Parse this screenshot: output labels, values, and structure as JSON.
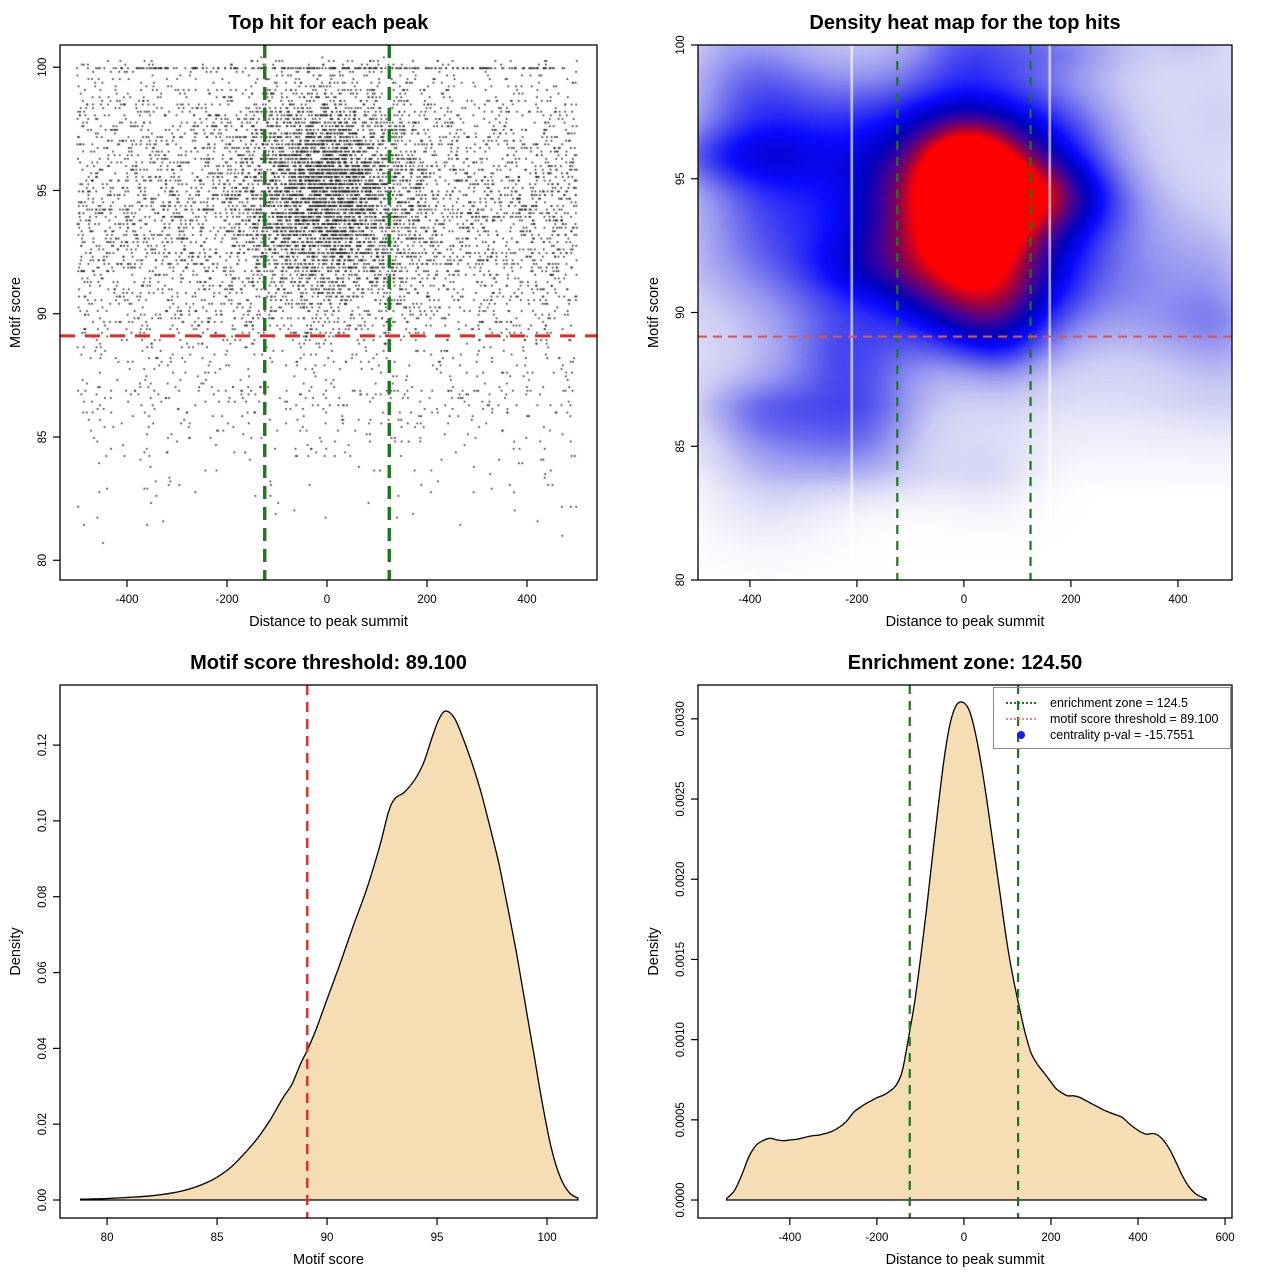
{
  "colors": {
    "green_line": "#1a7a1a",
    "red_line_bold": "#e32929",
    "red_line_soft": "#d95454",
    "legend_red": "#f28080",
    "legend_blue": "#1a1aff",
    "density_fill": "#f5deb3",
    "curve_stroke": "#000000",
    "scatter_dot": "#1a1a1a",
    "heat_ramp": [
      "#ffffff",
      "#ebebfa",
      "#ccccf4",
      "#9696f0",
      "#5050ee",
      "#0a0aff",
      "#0000be",
      "#460096",
      "#960046",
      "#ff0000"
    ]
  },
  "chart_data": [
    {
      "id": "scatter",
      "type": "scatter",
      "title": "Top hit for each peak",
      "xlabel": "Distance to peak summit",
      "ylabel": "Motif score",
      "xticks": [
        -400,
        -200,
        0,
        200,
        400
      ],
      "yticks": [
        80,
        85,
        90,
        95,
        100
      ],
      "xlim": [
        -534,
        540
      ],
      "ylim": [
        79.2,
        100.9
      ],
      "threshold_line": {
        "y": 89.1,
        "color_key": "red_line_bold"
      },
      "zone_lines": {
        "x": [
          -124.5,
          124.5
        ],
        "color_key": "green_line"
      },
      "points_model": {
        "seed": 42,
        "n_cluster": 3200,
        "cluster_x_mean": 0,
        "cluster_x_sd": 88,
        "cluster_y_mean": 95.0,
        "cluster_y_sd": 2.3,
        "n_background": 5200,
        "background_x_range": [
          -500,
          500
        ],
        "background_y_mean": 94.0,
        "background_y_sd": 3.4,
        "low_tail_fraction": 0.055,
        "y_cap": 100,
        "y_floor": 79.9,
        "y_quantum": 0.147
      }
    },
    {
      "id": "heatmap",
      "type": "heatmap",
      "title": "Density heat map for the top hits",
      "xlabel": "Distance to peak summit",
      "ylabel": "Motif score",
      "xticks": [
        -400,
        -200,
        0,
        200,
        400
      ],
      "yticks": [
        80,
        85,
        90,
        95,
        100
      ],
      "xlim": [
        -497,
        501
      ],
      "ylim": [
        80,
        100
      ],
      "threshold_line": {
        "y": 89.1,
        "color_key": "red_line_soft"
      },
      "zone_lines": {
        "x": [
          -124.5,
          124.5
        ],
        "color_key": "green_line"
      },
      "density_model": {
        "seed": 1234,
        "hotspot": {
          "x": 5,
          "y": 95.45,
          "amp": 0.36
        },
        "core": {
          "x": 0,
          "y": 94.5,
          "amp": 0.6
        },
        "lower_lobe": {
          "x": 3,
          "y": 92.8,
          "amp": 0.3
        },
        "background_wash": 0.14,
        "n_lumps": 46,
        "white_strips_x": [
          -210,
          160
        ]
      }
    },
    {
      "id": "score_density",
      "type": "area",
      "title": "Motif score threshold: 89.100",
      "xlabel": "Motif score",
      "ylabel": "Density",
      "xticks": [
        80,
        85,
        90,
        95,
        100
      ],
      "yticks": [
        "0.00",
        "0.02",
        "0.04",
        "0.06",
        "0.08",
        "0.10",
        "0.12"
      ],
      "xlim": [
        77.86,
        102.27
      ],
      "ylim": [
        -0.00475,
        0.13585
      ],
      "threshold_line": {
        "x": 89.1,
        "color_key": "red_line_bold"
      },
      "curve": [
        [
          78.8,
          0.0002
        ],
        [
          80,
          0.0004
        ],
        [
          81,
          0.0007
        ],
        [
          82,
          0.0011
        ],
        [
          83,
          0.0019
        ],
        [
          83.8,
          0.003
        ],
        [
          84.5,
          0.0045
        ],
        [
          85,
          0.006
        ],
        [
          85.6,
          0.0085
        ],
        [
          86.2,
          0.012
        ],
        [
          86.8,
          0.016
        ],
        [
          87.4,
          0.021
        ],
        [
          88,
          0.027
        ],
        [
          88.4,
          0.0305
        ],
        [
          88.8,
          0.036
        ],
        [
          89.1,
          0.0395
        ],
        [
          89.5,
          0.045
        ],
        [
          90,
          0.053
        ],
        [
          90.6,
          0.0625
        ],
        [
          91.2,
          0.0725
        ],
        [
          91.8,
          0.082
        ],
        [
          92.4,
          0.0935
        ],
        [
          92.8,
          0.1025
        ],
        [
          93.1,
          0.106
        ],
        [
          93.5,
          0.1075
        ],
        [
          94,
          0.111
        ],
        [
          94.4,
          0.1155
        ],
        [
          94.8,
          0.1225
        ],
        [
          95.1,
          0.127
        ],
        [
          95.4,
          0.129
        ],
        [
          95.8,
          0.127
        ],
        [
          96.2,
          0.1215
        ],
        [
          96.6,
          0.115
        ],
        [
          97,
          0.1075
        ],
        [
          97.4,
          0.0985
        ],
        [
          97.8,
          0.089
        ],
        [
          98.2,
          0.0775
        ],
        [
          98.6,
          0.0655
        ],
        [
          99,
          0.052
        ],
        [
          99.4,
          0.0385
        ],
        [
          99.8,
          0.025
        ],
        [
          100.2,
          0.0135
        ],
        [
          100.6,
          0.006
        ],
        [
          101,
          0.002
        ],
        [
          101.4,
          0.0005
        ]
      ]
    },
    {
      "id": "distance_density",
      "type": "area",
      "title": "Enrichment zone: 124.50",
      "xlabel": "Distance to peak summit",
      "ylabel": "Density",
      "xticks": [
        -400,
        -200,
        0,
        200,
        400,
        600
      ],
      "yticks": [
        "0.0000",
        "0.0005",
        "0.0010",
        "0.0015",
        "0.0020",
        "0.0025",
        "0.0030"
      ],
      "xlim": [
        -611,
        616
      ],
      "ylim": [
        -0.000112,
        0.003211
      ],
      "zone_lines": {
        "x": [
          -124.5,
          124.5
        ],
        "color_key": "green_line"
      },
      "legend": {
        "items": [
          {
            "label": "enrichment zone = 124.5",
            "symbol": "dotted-line",
            "color_key": "green_line"
          },
          {
            "label": "motif score threshold = 89.100",
            "symbol": "dotted-line",
            "color_key": "legend_red"
          },
          {
            "label": "centrality p-val = -15.7551",
            "symbol": "dot",
            "color_key": "legend_blue"
          }
        ]
      },
      "curve": [
        [
          -545,
          1e-05
        ],
        [
          -527,
          6e-05
        ],
        [
          -510,
          0.00016
        ],
        [
          -494,
          0.00027
        ],
        [
          -478,
          0.00034
        ],
        [
          -462,
          0.00037
        ],
        [
          -446,
          0.000385
        ],
        [
          -430,
          0.000375
        ],
        [
          -414,
          0.00037
        ],
        [
          -398,
          0.000375
        ],
        [
          -382,
          0.00038
        ],
        [
          -366,
          0.00039
        ],
        [
          -350,
          0.0004
        ],
        [
          -334,
          0.000405
        ],
        [
          -318,
          0.000415
        ],
        [
          -302,
          0.00043
        ],
        [
          -286,
          0.000455
        ],
        [
          -270,
          0.00049
        ],
        [
          -254,
          0.000545
        ],
        [
          -240,
          0.000575
        ],
        [
          -226,
          0.0006
        ],
        [
          -212,
          0.00062
        ],
        [
          -198,
          0.00064
        ],
        [
          -184,
          0.000655
        ],
        [
          -170,
          0.00068
        ],
        [
          -156,
          0.000715
        ],
        [
          -142,
          0.0008
        ],
        [
          -128,
          0.001
        ],
        [
          -114,
          0.00122
        ],
        [
          -100,
          0.0015
        ],
        [
          -86,
          0.00181
        ],
        [
          -72,
          0.00215
        ],
        [
          -58,
          0.00248
        ],
        [
          -44,
          0.00278
        ],
        [
          -30,
          0.00299
        ],
        [
          -16,
          0.00309
        ],
        [
          0,
          0.0031
        ],
        [
          14,
          0.00304
        ],
        [
          28,
          0.00289
        ],
        [
          42,
          0.00268
        ],
        [
          56,
          0.00243
        ],
        [
          70,
          0.00216
        ],
        [
          84,
          0.00189
        ],
        [
          98,
          0.00162
        ],
        [
          112,
          0.0014
        ],
        [
          126,
          0.00122
        ],
        [
          140,
          0.00105
        ],
        [
          154,
          0.00092
        ],
        [
          168,
          0.00085
        ],
        [
          182,
          0.0008
        ],
        [
          196,
          0.00075
        ],
        [
          210,
          0.0007
        ],
        [
          224,
          0.00067
        ],
        [
          238,
          0.00065
        ],
        [
          252,
          0.00065
        ],
        [
          266,
          0.00064
        ],
        [
          280,
          0.00062
        ],
        [
          294,
          0.0006
        ],
        [
          308,
          0.00058
        ],
        [
          322,
          0.00056
        ],
        [
          336,
          0.000545
        ],
        [
          350,
          0.00053
        ],
        [
          364,
          0.000515
        ],
        [
          378,
          0.00048
        ],
        [
          392,
          0.00045
        ],
        [
          406,
          0.000425
        ],
        [
          420,
          0.00041
        ],
        [
          434,
          0.000415
        ],
        [
          448,
          0.0004
        ],
        [
          462,
          0.00036
        ],
        [
          476,
          0.0003
        ],
        [
          490,
          0.00022
        ],
        [
          504,
          0.00014
        ],
        [
          518,
          8e-05
        ],
        [
          532,
          4e-05
        ],
        [
          545,
          2e-05
        ],
        [
          557,
          5e-06
        ]
      ]
    }
  ]
}
